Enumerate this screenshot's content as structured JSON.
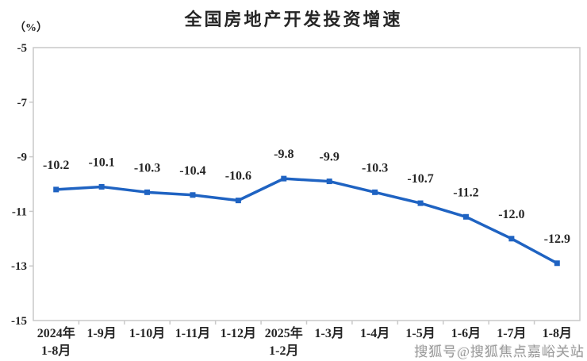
{
  "watermark": {
    "text": "搜狐号@搜狐焦点嘉峪关站"
  },
  "chart_data": {
    "type": "line",
    "title": "全国房地产开发投资增速",
    "unit_label": "（%）",
    "categories": [
      "2024年\n1-8月",
      "1-9月",
      "1-10月",
      "1-11月",
      "1-12月",
      "2025年\n1-2月",
      "1-3月",
      "1-4月",
      "1-5月",
      "1-6月",
      "1-7月",
      "1-8月"
    ],
    "values": [
      -10.2,
      -10.1,
      -10.3,
      -10.4,
      -10.6,
      -9.8,
      -9.9,
      -10.3,
      -10.7,
      -11.2,
      -12.0,
      -12.9
    ],
    "data_labels": [
      "-10.2",
      "-10.1",
      "-10.3",
      "-10.4",
      "-10.6",
      "-9.8",
      "-9.9",
      "-10.3",
      "-10.7",
      "-11.2",
      "-12.0",
      "-12.9"
    ],
    "xlabel": "",
    "ylabel": "",
    "ylim": [
      -15,
      -5
    ],
    "yticks": [
      -5,
      -7,
      -9,
      -11,
      -13,
      -15
    ],
    "grid": false,
    "legend": "none",
    "line_color": "#1f63c2",
    "marker": "square",
    "axis_color": "#c9c9c9",
    "text_color": "#262626"
  }
}
